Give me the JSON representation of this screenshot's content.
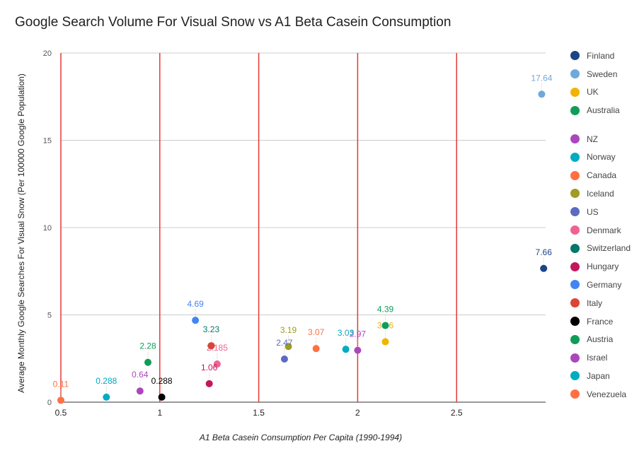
{
  "chart_data": {
    "type": "scatter",
    "title": "Google Search Volume For Visual Snow vs A1 Beta Casein Consumption",
    "xlabel": "A1 Beta Casein Consumption Per Capita (1990-1994)",
    "ylabel": "Average Monthly Google Searches For Visual Snow (Per 100000 Google Population)",
    "xlim": [
      0.5,
      2.95
    ],
    "ylim": [
      0,
      20
    ],
    "x_ticks": [
      "0.5",
      "1",
      "1.5",
      "2",
      "2.5"
    ],
    "x_tick_values": [
      0.5,
      1,
      1.5,
      2,
      2.5
    ],
    "y_ticks": [
      "0",
      "5",
      "10",
      "15",
      "20"
    ],
    "y_tick_values": [
      0,
      5,
      10,
      15,
      20
    ],
    "grid": "horizontal gray, vertical red",
    "legend_position": "right",
    "series": [
      {
        "name": "Finland",
        "color": "#1c4587",
        "x": 2.94,
        "y": 7.66,
        "label": "7.66"
      },
      {
        "name": "Sweden",
        "color": "#6fa8dc",
        "x": 2.93,
        "y": 17.64,
        "label": "17.64"
      },
      {
        "name": "UK",
        "color": "#f1b400",
        "x": 2.14,
        "y": 3.46,
        "label": "3.46"
      },
      {
        "name": "Australia",
        "color": "#0f9d58",
        "x": 0.94,
        "y": 2.28,
        "label": "2.28"
      },
      {
        "name": "NZ",
        "color": "#ab47bc",
        "x": 2.0,
        "y": 2.97,
        "label": "2.97"
      },
      {
        "name": "Norway",
        "color": "#00acc1",
        "x": 1.94,
        "y": 3.03,
        "label": "3.03"
      },
      {
        "name": "Canada",
        "color": "#ff7043",
        "x": 1.79,
        "y": 3.07,
        "label": "3.07"
      },
      {
        "name": "Iceland",
        "color": "#9e9d24",
        "x": 1.65,
        "y": 3.19,
        "label": "3.19"
      },
      {
        "name": "US",
        "color": "#5c6bc0",
        "x": 1.63,
        "y": 2.47,
        "label": "2.47"
      },
      {
        "name": "Denmark",
        "color": "#f06292",
        "x": 1.29,
        "y": 2.185,
        "label": "2.185"
      },
      {
        "name": "Switzerland",
        "color": "#00796b",
        "x": 1.26,
        "y": 3.23,
        "label": "3.23"
      },
      {
        "name": "Hungary",
        "color": "#c2185b",
        "x": 1.25,
        "y": 1.06,
        "label": "1.06"
      },
      {
        "name": "Germany",
        "color": "#4285f4",
        "x": 1.18,
        "y": 4.69,
        "label": "4.69"
      },
      {
        "name": "Italy",
        "color": "#db4437",
        "x": 1.26,
        "y": 3.23,
        "label": ""
      },
      {
        "name": "France",
        "color": "#000000",
        "x": 1.01,
        "y": 0.288,
        "label": "0.288"
      },
      {
        "name": "Austria",
        "color": "#0f9d58",
        "x": 2.14,
        "y": 4.39,
        "label": "4.39"
      },
      {
        "name": "Israel",
        "color": "#ab47bc",
        "x": 0.9,
        "y": 0.64,
        "label": "0.64"
      },
      {
        "name": "Japan",
        "color": "#00acc1",
        "x": 0.73,
        "y": 0.288,
        "label": "0.288"
      },
      {
        "name": "Venezuela",
        "color": "#ff7043",
        "x": 0.5,
        "y": 0.11,
        "label": "0.11"
      }
    ]
  }
}
